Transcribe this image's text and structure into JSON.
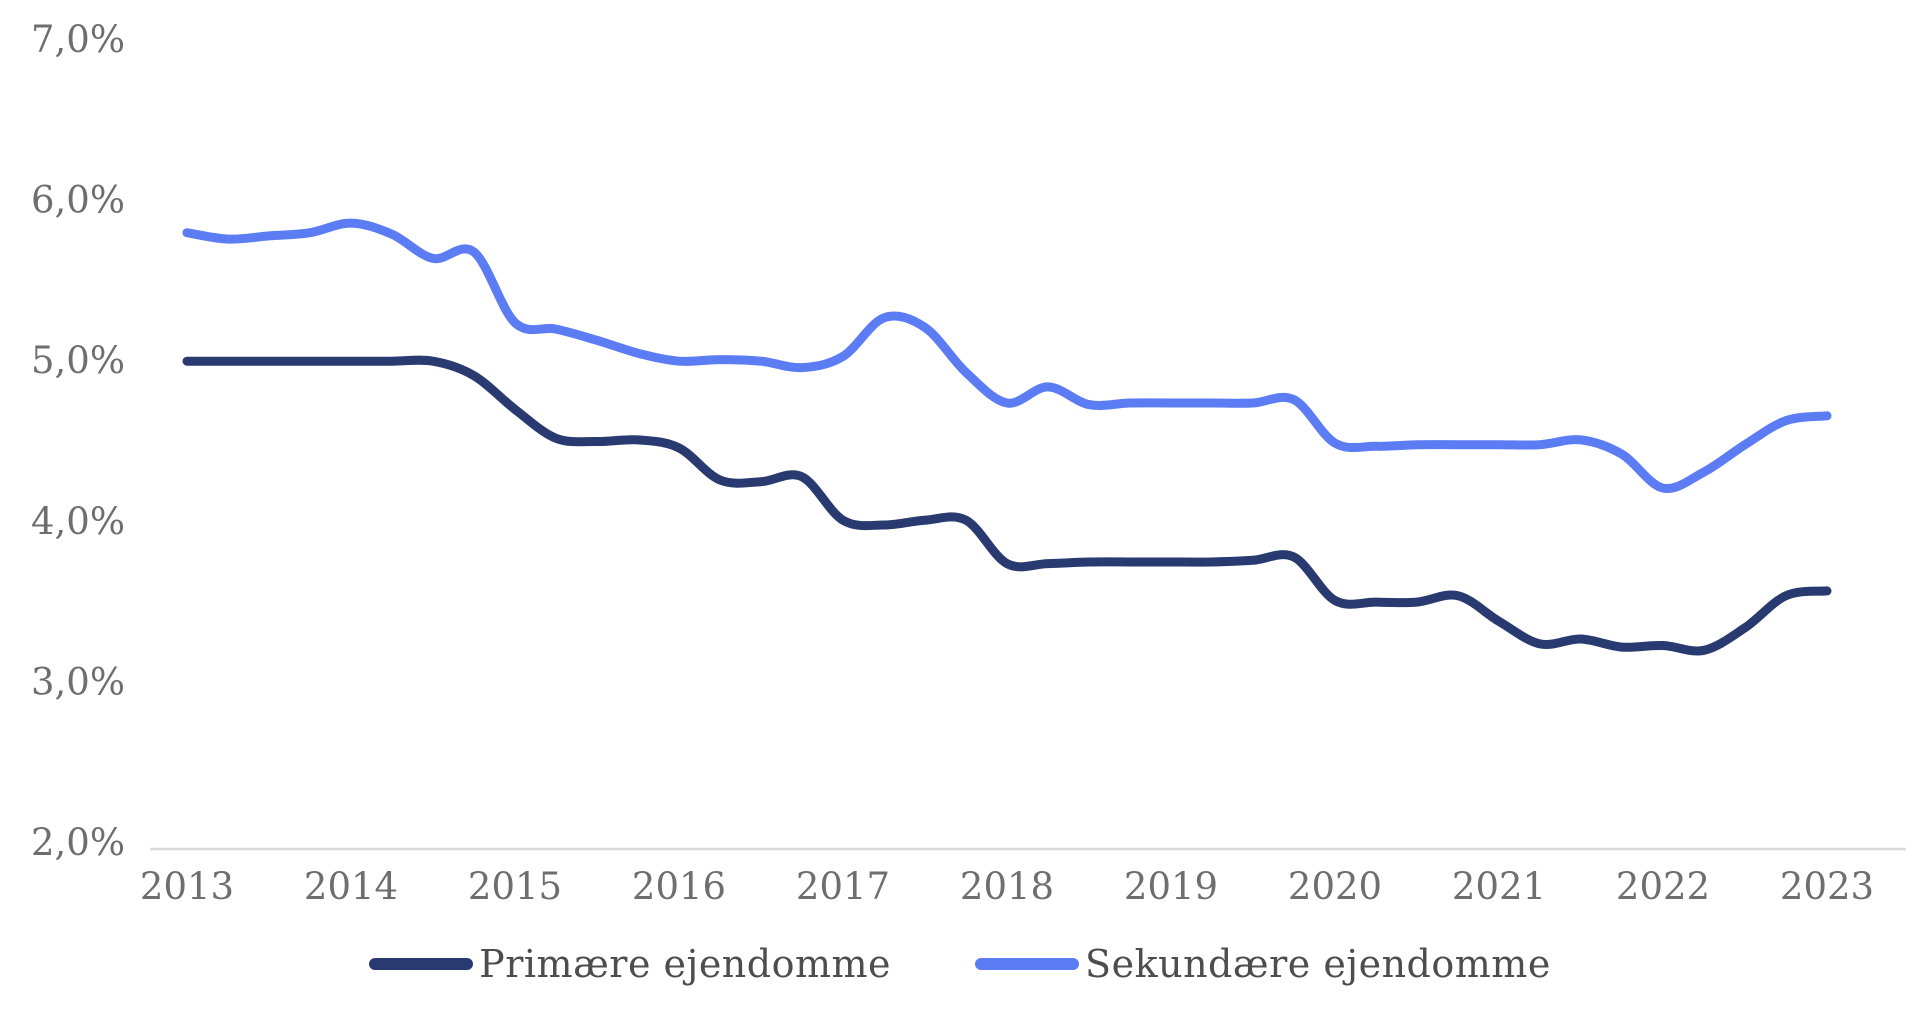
{
  "page": {
    "background": "#ffffff"
  },
  "axis": {
    "line_color": "#d9d9d9",
    "label_color": "#6e6e6e"
  },
  "chart_data": {
    "type": "line",
    "title": "",
    "xlabel": "",
    "ylabel": "",
    "grid": false,
    "smoothed": true,
    "legend_position": "bottom",
    "ylim": [
      2.0,
      7.0
    ],
    "y_tick_labels": [
      "7,0%",
      "6,0%",
      "5,0%",
      "4,0%",
      "3,0%",
      "2,0%"
    ],
    "y_tick_values": [
      7.0,
      6.0,
      5.0,
      4.0,
      3.0,
      2.0
    ],
    "x_tick_labels": [
      "2013",
      "2014",
      "2015",
      "2016",
      "2017",
      "2018",
      "2019",
      "2020",
      "2021",
      "2022",
      "2023"
    ],
    "x_frequency": "quarterly",
    "x_start_year": 2013,
    "x_end_year": 2023,
    "series": [
      {
        "name": "Primære ejendomme",
        "color": "#283A70",
        "values": [
          5.0,
          5.0,
          5.0,
          5.0,
          5.0,
          5.0,
          5.0,
          4.91,
          4.7,
          4.52,
          4.5,
          4.51,
          4.46,
          4.26,
          4.25,
          4.28,
          4.01,
          3.98,
          4.01,
          4.01,
          3.74,
          3.74,
          3.75,
          3.75,
          3.75,
          3.75,
          3.76,
          3.78,
          3.51,
          3.5,
          3.5,
          3.54,
          3.38,
          3.24,
          3.27,
          3.22,
          3.23,
          3.2,
          3.34,
          3.54,
          3.57
        ]
      },
      {
        "name": "Sekundære ejendomme",
        "color": "#5B7CF3",
        "values": [
          5.8,
          5.76,
          5.78,
          5.8,
          5.86,
          5.79,
          5.64,
          5.68,
          5.24,
          5.2,
          5.13,
          5.05,
          5.0,
          5.01,
          5.0,
          4.96,
          5.03,
          5.27,
          5.21,
          4.93,
          4.74,
          4.84,
          4.73,
          4.74,
          4.74,
          4.74,
          4.74,
          4.76,
          4.49,
          4.47,
          4.48,
          4.48,
          4.48,
          4.48,
          4.51,
          4.42,
          4.21,
          4.31,
          4.48,
          4.63,
          4.66
        ]
      }
    ]
  }
}
